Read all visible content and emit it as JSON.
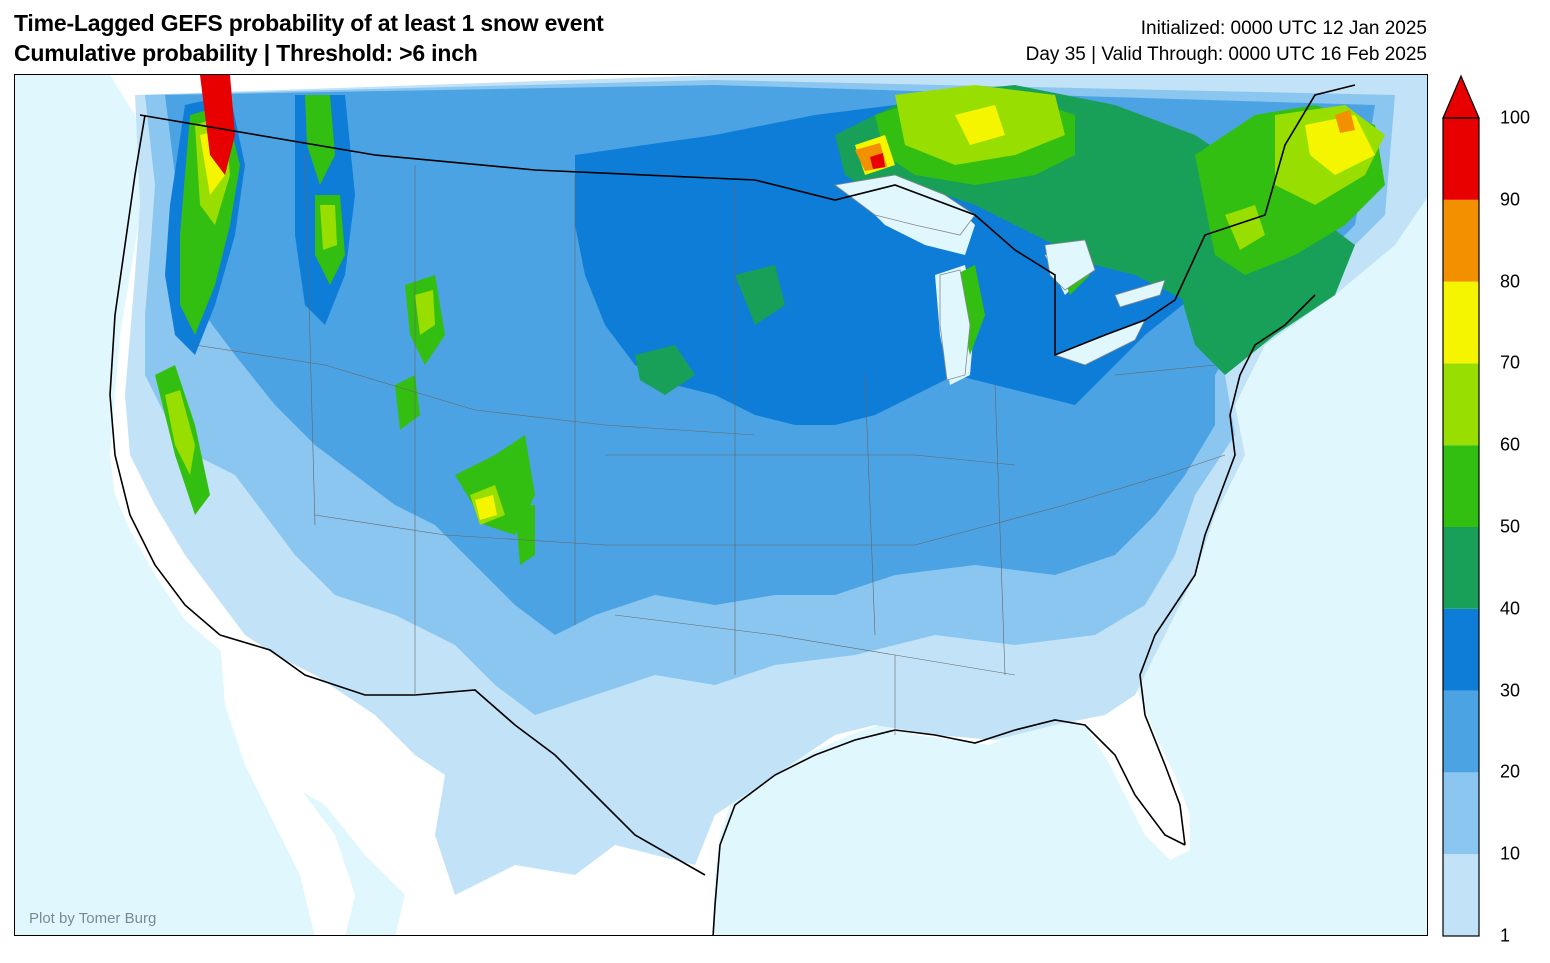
{
  "header": {
    "title_line1": "Time-Lagged GEFS probability of at least 1 snow event",
    "title_line2": "Cumulative probability | Threshold: >6 inch",
    "init_line": "Initialized: 0000 UTC 12 Jan 2025",
    "valid_line": "Day 35 | Valid Through: 0000 UTC 16 Feb 2025"
  },
  "credit": "Plot by Tomer Burg",
  "colorbar": {
    "ticks": [
      "1",
      "10",
      "20",
      "30",
      "40",
      "50",
      "60",
      "70",
      "80",
      "90",
      "100"
    ],
    "colors": [
      "#c2e3f7",
      "#8ac6ef",
      "#4ca3e3",
      "#0d7dd8",
      "#18a058",
      "#33be12",
      "#98de00",
      "#f5f500",
      "#f39000",
      "#e80000"
    ],
    "extend": "max"
  },
  "map": {
    "ocean_color": "#e0f7fe",
    "land_color": "#ffffff",
    "region": "Contiguous United States"
  }
}
